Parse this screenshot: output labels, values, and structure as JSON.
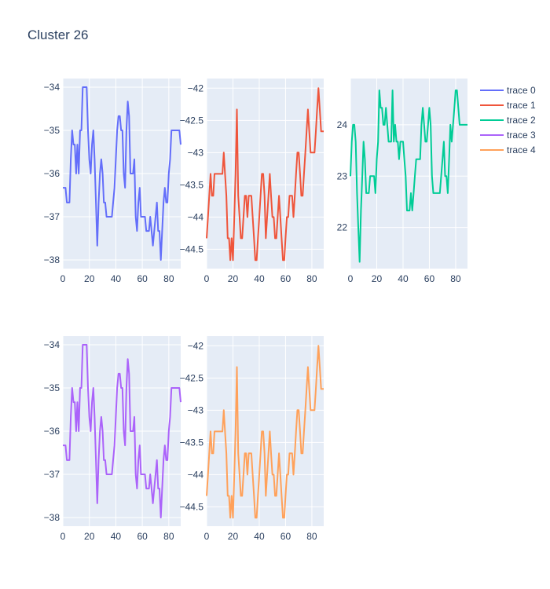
{
  "title": "Cluster 26",
  "chart_data": {
    "type": "line",
    "title": "Cluster 26",
    "legend_placement": "right",
    "grid": true,
    "series": [
      {
        "name": "trace 0",
        "color": "#636efa",
        "x": [
          0,
          1,
          2,
          3,
          4,
          5,
          6,
          7,
          8,
          9,
          10,
          11,
          12,
          13,
          14,
          15,
          16,
          17,
          18,
          19,
          20,
          21,
          22,
          23,
          24,
          25,
          26,
          27,
          28,
          29,
          30,
          31,
          32,
          33,
          34,
          35,
          36,
          37,
          38,
          39,
          40,
          41,
          42,
          43,
          44,
          45,
          46,
          47,
          48,
          49,
          50,
          51,
          52,
          53,
          54,
          55,
          56,
          57,
          58,
          59,
          60,
          61,
          62,
          63,
          64,
          65,
          66,
          67,
          68,
          69,
          70,
          71,
          72,
          73,
          74,
          75,
          76,
          77,
          78,
          79,
          80,
          81,
          82,
          83,
          84,
          85,
          86,
          87,
          88,
          89
        ],
        "y": [
          -36.33,
          -36.33,
          -36.33,
          -36.67,
          -36.67,
          -36.67,
          -35.67,
          -35.0,
          -35.33,
          -35.33,
          -36.0,
          -35.33,
          -36.0,
          -35.0,
          -35.0,
          -34.0,
          -34.0,
          -34.0,
          -34.0,
          -35.0,
          -35.67,
          -36.0,
          -35.33,
          -35.0,
          -35.67,
          -36.67,
          -37.67,
          -36.67,
          -36.0,
          -35.67,
          -36.0,
          -36.67,
          -36.67,
          -37.0,
          -37.0,
          -37.0,
          -37.0,
          -37.0,
          -36.67,
          -36.33,
          -35.67,
          -35.0,
          -34.67,
          -34.67,
          -35.0,
          -35.0,
          -36.0,
          -36.33,
          -35.0,
          -34.33,
          -34.67,
          -36.0,
          -36.0,
          -36.0,
          -35.67,
          -37.0,
          -37.33,
          -36.67,
          -36.33,
          -37.0,
          -37.0,
          -37.0,
          -37.0,
          -37.33,
          -37.33,
          -37.33,
          -37.0,
          -37.33,
          -37.67,
          -37.33,
          -37.0,
          -36.67,
          -37.33,
          -37.33,
          -38.0,
          -37.33,
          -36.67,
          -36.33,
          -36.67,
          -36.67,
          -36.0,
          -35.67,
          -35.0,
          -35.0,
          -35.0,
          -35.0,
          -35.0,
          -35.0,
          -35.0,
          -35.33
        ],
        "xlim": [
          0,
          89
        ],
        "ylim": [
          -38.2,
          -33.8
        ],
        "xticks": [
          0,
          20,
          40,
          60,
          80
        ],
        "yticks": [
          -38,
          -37,
          -36,
          -35,
          -34
        ]
      },
      {
        "name": "trace 1",
        "color": "#ef553b",
        "x": [
          0,
          1,
          2,
          3,
          4,
          5,
          6,
          7,
          8,
          9,
          10,
          11,
          12,
          13,
          14,
          15,
          16,
          17,
          18,
          19,
          20,
          21,
          22,
          23,
          24,
          25,
          26,
          27,
          28,
          29,
          30,
          31,
          32,
          33,
          34,
          35,
          36,
          37,
          38,
          39,
          40,
          41,
          42,
          43,
          44,
          45,
          46,
          47,
          48,
          49,
          50,
          51,
          52,
          53,
          54,
          55,
          56,
          57,
          58,
          59,
          60,
          61,
          62,
          63,
          64,
          65,
          66,
          67,
          68,
          69,
          70,
          71,
          72,
          73,
          74,
          75,
          76,
          77,
          78,
          79,
          80,
          81,
          82,
          83,
          84,
          85,
          86,
          87,
          88,
          89
        ],
        "y": [
          -44.33,
          -44.0,
          -43.67,
          -43.33,
          -43.67,
          -43.67,
          -43.33,
          -43.33,
          -43.33,
          -43.33,
          -43.33,
          -43.33,
          -43.33,
          -43.0,
          -43.33,
          -43.67,
          -44.33,
          -44.33,
          -44.67,
          -44.33,
          -44.67,
          -44.0,
          -43.33,
          -42.33,
          -43.67,
          -44.0,
          -44.33,
          -44.33,
          -44.0,
          -43.67,
          -43.67,
          -44.0,
          -43.67,
          -43.67,
          -43.67,
          -44.0,
          -44.33,
          -44.67,
          -44.67,
          -44.33,
          -44.0,
          -43.67,
          -43.33,
          -43.33,
          -43.67,
          -44.33,
          -44.0,
          -43.67,
          -43.33,
          -43.67,
          -44.0,
          -44.0,
          -44.33,
          -44.33,
          -44.0,
          -43.67,
          -44.0,
          -44.33,
          -44.67,
          -44.67,
          -44.33,
          -44.0,
          -44.0,
          -43.67,
          -43.67,
          -43.67,
          -44.0,
          -43.67,
          -43.33,
          -43.0,
          -43.0,
          -43.33,
          -43.67,
          -43.67,
          -43.33,
          -43.0,
          -42.67,
          -42.33,
          -42.67,
          -43.0,
          -43.0,
          -43.0,
          -43.0,
          -42.67,
          -42.33,
          -42.0,
          -42.33,
          -42.67,
          -42.67,
          -42.67
        ],
        "xlim": [
          0,
          89
        ],
        "ylim": [
          -44.8,
          -41.85
        ],
        "xticks": [
          0,
          20,
          40,
          60,
          80
        ],
        "yticks": [
          -44.5,
          -44,
          -43.5,
          -43,
          -42.5,
          -42
        ]
      },
      {
        "name": "trace 2",
        "color": "#00cc96",
        "x": [
          0,
          1,
          2,
          3,
          4,
          5,
          6,
          7,
          8,
          9,
          10,
          11,
          12,
          13,
          14,
          15,
          16,
          17,
          18,
          19,
          20,
          21,
          22,
          23,
          24,
          25,
          26,
          27,
          28,
          29,
          30,
          31,
          32,
          33,
          34,
          35,
          36,
          37,
          38,
          39,
          40,
          41,
          42,
          43,
          44,
          45,
          46,
          47,
          48,
          49,
          50,
          51,
          52,
          53,
          54,
          55,
          56,
          57,
          58,
          59,
          60,
          61,
          62,
          63,
          64,
          65,
          66,
          67,
          68,
          69,
          70,
          71,
          72,
          73,
          74,
          75,
          76,
          77,
          78,
          79,
          80,
          81,
          82,
          83,
          84,
          85,
          86,
          87,
          88,
          89
        ],
        "y": [
          23.0,
          23.67,
          24.0,
          24.0,
          23.67,
          22.67,
          22.0,
          21.33,
          22.33,
          23.0,
          23.67,
          23.33,
          22.67,
          22.67,
          22.67,
          23.0,
          23.0,
          23.0,
          23.0,
          22.67,
          23.33,
          23.67,
          24.67,
          24.33,
          24.33,
          24.0,
          24.0,
          24.33,
          24.0,
          23.67,
          23.67,
          23.67,
          24.67,
          23.67,
          24.0,
          23.67,
          23.67,
          23.33,
          23.67,
          23.67,
          23.67,
          23.33,
          23.0,
          22.33,
          22.33,
          22.33,
          22.67,
          22.33,
          22.67,
          23.0,
          23.33,
          23.33,
          23.33,
          23.33,
          24.0,
          24.33,
          24.0,
          23.67,
          23.67,
          24.0,
          24.33,
          24.0,
          23.0,
          22.67,
          22.67,
          22.67,
          22.67,
          22.67,
          22.67,
          23.0,
          23.33,
          23.67,
          23.0,
          23.0,
          22.67,
          23.33,
          24.0,
          23.67,
          24.0,
          24.33,
          24.67,
          24.67,
          24.33,
          24.0,
          24.0,
          24.0,
          24.0,
          24.0,
          24.0,
          24.0
        ],
        "xlim": [
          0,
          89
        ],
        "ylim": [
          21.2,
          24.9
        ],
        "xticks": [
          0,
          20,
          40,
          60,
          80
        ],
        "yticks": [
          22,
          23,
          24
        ]
      },
      {
        "name": "trace 3",
        "color": "#ab63fa",
        "x": [
          0,
          1,
          2,
          3,
          4,
          5,
          6,
          7,
          8,
          9,
          10,
          11,
          12,
          13,
          14,
          15,
          16,
          17,
          18,
          19,
          20,
          21,
          22,
          23,
          24,
          25,
          26,
          27,
          28,
          29,
          30,
          31,
          32,
          33,
          34,
          35,
          36,
          37,
          38,
          39,
          40,
          41,
          42,
          43,
          44,
          45,
          46,
          47,
          48,
          49,
          50,
          51,
          52,
          53,
          54,
          55,
          56,
          57,
          58,
          59,
          60,
          61,
          62,
          63,
          64,
          65,
          66,
          67,
          68,
          69,
          70,
          71,
          72,
          73,
          74,
          75,
          76,
          77,
          78,
          79,
          80,
          81,
          82,
          83,
          84,
          85,
          86,
          87,
          88,
          89
        ],
        "y": [
          -36.33,
          -36.33,
          -36.33,
          -36.67,
          -36.67,
          -36.67,
          -35.67,
          -35.0,
          -35.33,
          -35.33,
          -36.0,
          -35.33,
          -36.0,
          -35.0,
          -35.0,
          -34.0,
          -34.0,
          -34.0,
          -34.0,
          -35.0,
          -35.67,
          -36.0,
          -35.33,
          -35.0,
          -35.67,
          -36.67,
          -37.67,
          -36.67,
          -36.0,
          -35.67,
          -36.0,
          -36.67,
          -36.67,
          -37.0,
          -37.0,
          -37.0,
          -37.0,
          -37.0,
          -36.67,
          -36.33,
          -35.67,
          -35.0,
          -34.67,
          -34.67,
          -35.0,
          -35.0,
          -36.0,
          -36.33,
          -35.0,
          -34.33,
          -34.67,
          -36.0,
          -36.0,
          -36.0,
          -35.67,
          -37.0,
          -37.33,
          -36.67,
          -36.33,
          -37.0,
          -37.0,
          -37.0,
          -37.0,
          -37.33,
          -37.33,
          -37.33,
          -37.0,
          -37.33,
          -37.67,
          -37.33,
          -37.0,
          -36.67,
          -37.33,
          -37.33,
          -38.0,
          -37.33,
          -36.67,
          -36.33,
          -36.67,
          -36.67,
          -36.0,
          -35.67,
          -35.0,
          -35.0,
          -35.0,
          -35.0,
          -35.0,
          -35.0,
          -35.0,
          -35.33
        ],
        "xlim": [
          0,
          89
        ],
        "ylim": [
          -38.2,
          -33.8
        ],
        "xticks": [
          0,
          20,
          40,
          60,
          80
        ],
        "yticks": [
          -38,
          -37,
          -36,
          -35,
          -34
        ]
      },
      {
        "name": "trace 4",
        "color": "#ffa15a",
        "x": [
          0,
          1,
          2,
          3,
          4,
          5,
          6,
          7,
          8,
          9,
          10,
          11,
          12,
          13,
          14,
          15,
          16,
          17,
          18,
          19,
          20,
          21,
          22,
          23,
          24,
          25,
          26,
          27,
          28,
          29,
          30,
          31,
          32,
          33,
          34,
          35,
          36,
          37,
          38,
          39,
          40,
          41,
          42,
          43,
          44,
          45,
          46,
          47,
          48,
          49,
          50,
          51,
          52,
          53,
          54,
          55,
          56,
          57,
          58,
          59,
          60,
          61,
          62,
          63,
          64,
          65,
          66,
          67,
          68,
          69,
          70,
          71,
          72,
          73,
          74,
          75,
          76,
          77,
          78,
          79,
          80,
          81,
          82,
          83,
          84,
          85,
          86,
          87,
          88,
          89
        ],
        "y": [
          -44.33,
          -44.0,
          -43.67,
          -43.33,
          -43.67,
          -43.67,
          -43.33,
          -43.33,
          -43.33,
          -43.33,
          -43.33,
          -43.33,
          -43.33,
          -43.0,
          -43.33,
          -43.67,
          -44.33,
          -44.33,
          -44.67,
          -44.33,
          -44.67,
          -44.0,
          -43.33,
          -42.33,
          -43.67,
          -44.0,
          -44.33,
          -44.33,
          -44.0,
          -43.67,
          -43.67,
          -44.0,
          -43.67,
          -43.67,
          -43.67,
          -44.0,
          -44.33,
          -44.67,
          -44.67,
          -44.33,
          -44.0,
          -43.67,
          -43.33,
          -43.33,
          -43.67,
          -44.33,
          -44.0,
          -43.67,
          -43.33,
          -43.67,
          -44.0,
          -44.0,
          -44.33,
          -44.33,
          -44.0,
          -43.67,
          -44.0,
          -44.33,
          -44.67,
          -44.67,
          -44.33,
          -44.0,
          -44.0,
          -43.67,
          -43.67,
          -43.67,
          -44.0,
          -43.67,
          -43.33,
          -43.0,
          -43.0,
          -43.33,
          -43.67,
          -43.67,
          -43.33,
          -43.0,
          -42.67,
          -42.33,
          -42.67,
          -43.0,
          -43.0,
          -43.0,
          -43.0,
          -42.67,
          -42.33,
          -42.0,
          -42.33,
          -42.67,
          -42.67,
          -42.67
        ],
        "xlim": [
          0,
          89
        ],
        "ylim": [
          -44.8,
          -41.85
        ],
        "xticks": [
          0,
          20,
          40,
          60,
          80
        ],
        "yticks": [
          -44.5,
          -44,
          -43.5,
          -43,
          -42.5,
          -42
        ]
      }
    ]
  }
}
